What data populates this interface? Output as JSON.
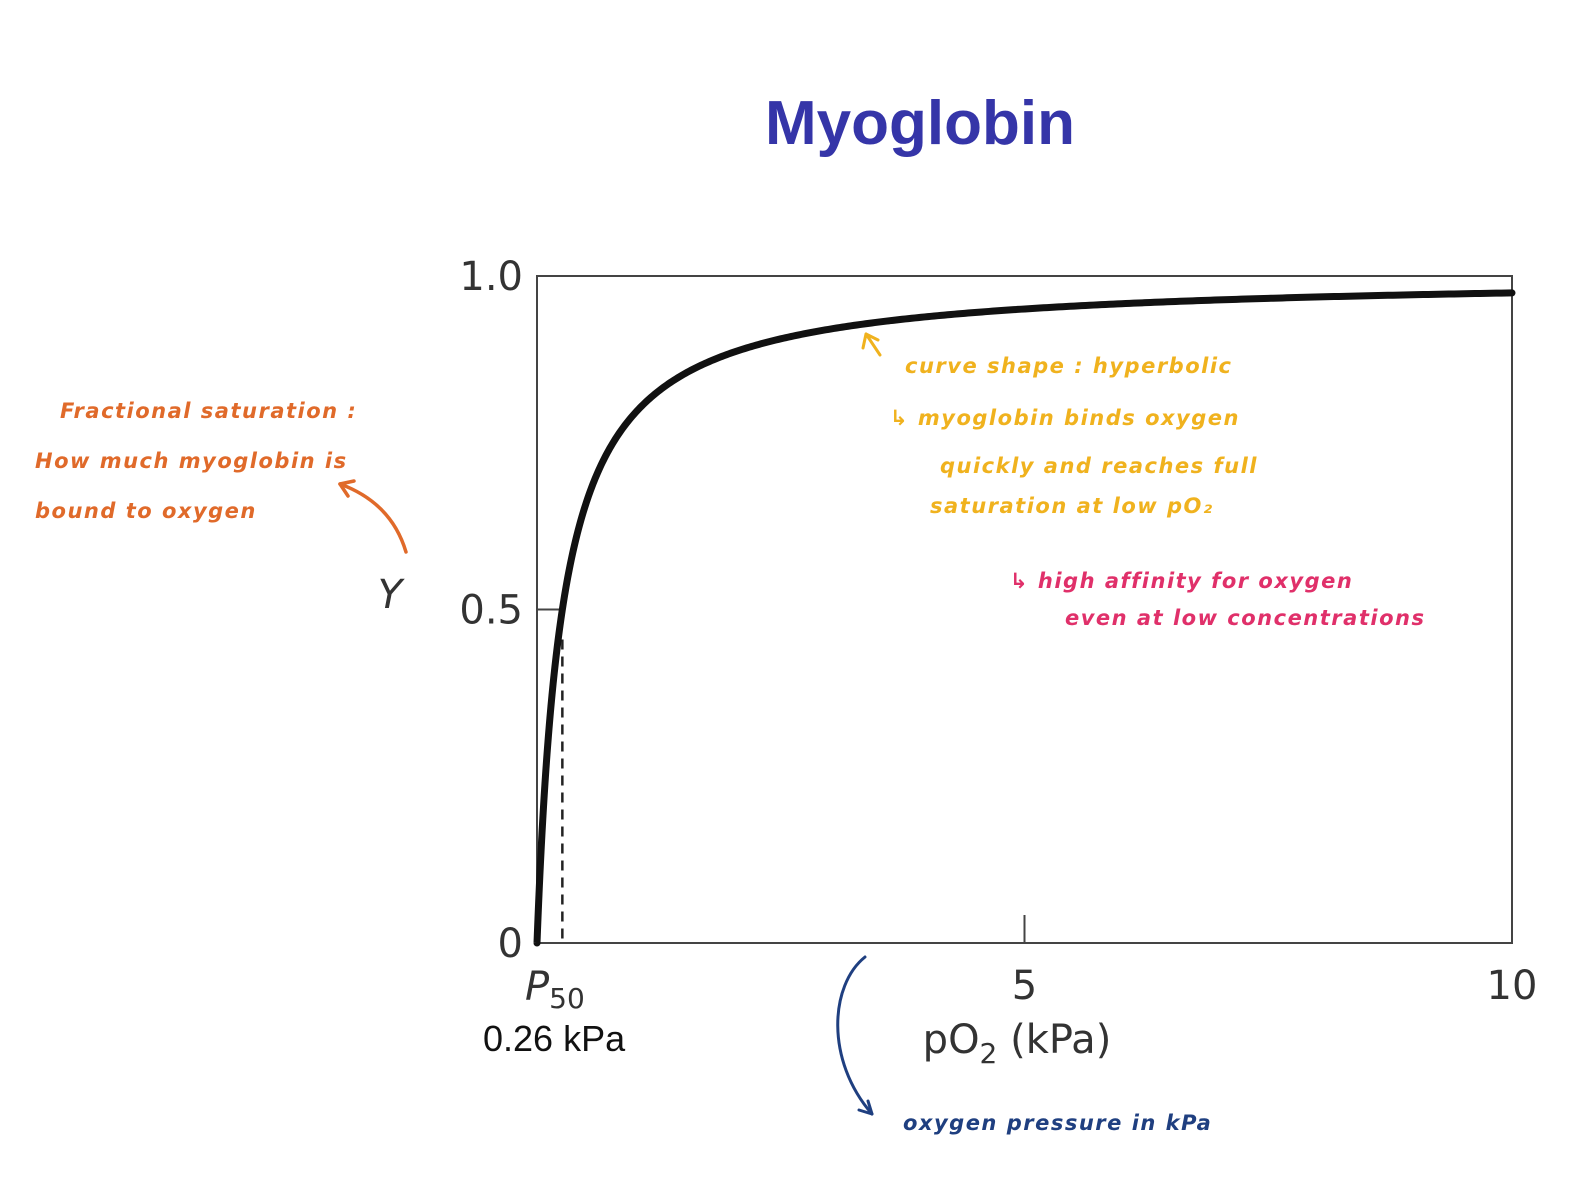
{
  "title": "Myoglobin",
  "chart_data": {
    "type": "line",
    "title": "Myoglobin",
    "xlabel_main": "pO",
    "xlabel_sub": "2",
    "xlabel_unit": " (kPa)",
    "ylabel": "Y",
    "xlim": [
      0,
      10
    ],
    "ylim": [
      0,
      1.0
    ],
    "x_ticks": [
      {
        "value": 5,
        "label": "5"
      },
      {
        "value": 10,
        "label": "10"
      }
    ],
    "y_ticks": [
      {
        "value": 0,
        "label": "0"
      },
      {
        "value": 0.5,
        "label": "0.5"
      },
      {
        "value": 1.0,
        "label": "1.0"
      }
    ],
    "grid": false,
    "series": [
      {
        "p50": 0.26,
        "x": [
          0,
          0.1,
          0.2,
          0.3,
          0.5,
          0.75,
          1.0,
          1.5,
          2.0,
          2.5,
          3.0,
          4.0,
          5.0,
          6.0,
          7.0,
          8.0,
          9.0,
          10.0
        ],
        "y": [
          0,
          0.278,
          0.435,
          0.536,
          0.658,
          0.743,
          0.794,
          0.852,
          0.885,
          0.906,
          0.92,
          0.939,
          0.951,
          0.958,
          0.964,
          0.969,
          0.972,
          0.975
        ],
        "color": "#111111"
      }
    ],
    "p50_marker": {
      "x": 0.26,
      "y": 0.5,
      "label_main": "P",
      "label_sub": "50",
      "value_label": "0.26 kPa"
    }
  },
  "annotations": {
    "y_axis": [
      "Fractional saturation :",
      "How much myoglobin is",
      "bound to oxygen"
    ],
    "curve": [
      "curve shape : hyperbolic",
      "↳ myoglobin binds oxygen",
      "quickly and reaches full",
      "saturation at low pO₂"
    ],
    "affinity": [
      "↳ high affinity for oxygen",
      "even at low concentrations"
    ],
    "x_axis": "oxygen pressure in kPa"
  },
  "colors": {
    "title": "#3535a8",
    "curve": "#111111",
    "note_orange": "#e06a2a",
    "note_yellow": "#f0b21e",
    "note_pink": "#e0306a",
    "note_blue": "#1f3f80"
  }
}
